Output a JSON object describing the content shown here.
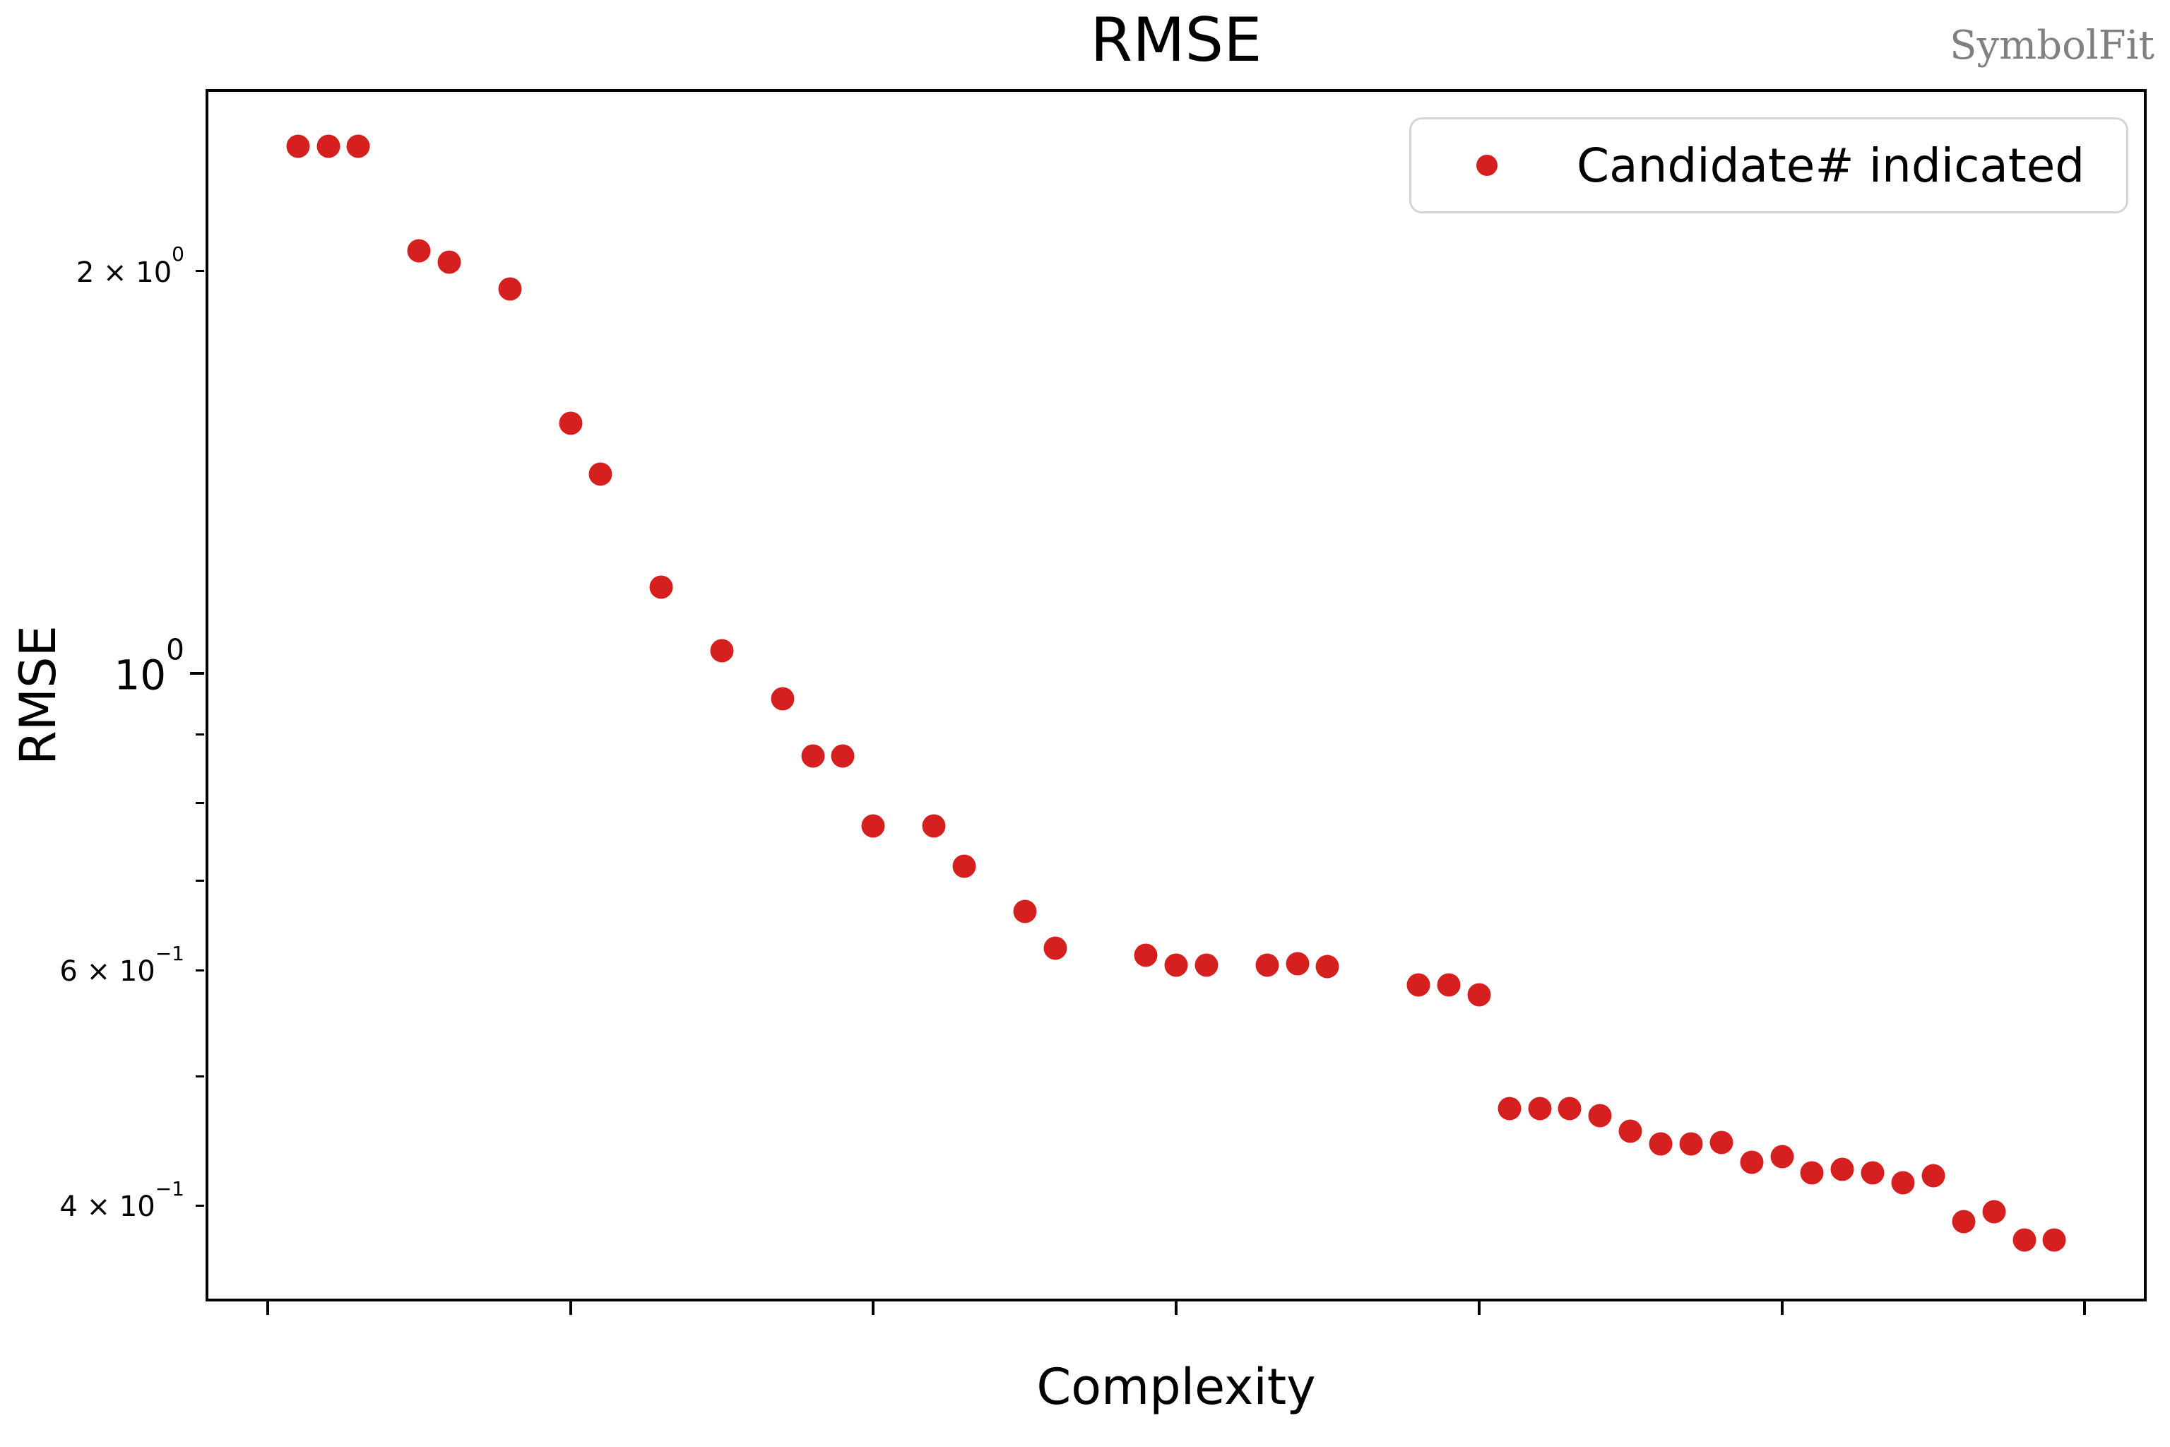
{
  "watermark": "SymbolFit",
  "colors": {
    "point": "#d62020",
    "watermark": "#808080",
    "legend_border": "#d4d4d4",
    "text": "#000000"
  },
  "chart_data": {
    "type": "scatter",
    "title": "RMSE",
    "xlabel": "Complexity",
    "ylabel": "RMSE",
    "xscale": "linear",
    "yscale": "log",
    "grid": false,
    "xlim": [
      -2,
      62
    ],
    "ylim": [
      0.34,
      2.73
    ],
    "legend": {
      "label": "Candidate# indicated",
      "position": "upper right"
    },
    "x_ticks": [
      {
        "value": 0,
        "label": "0"
      },
      {
        "value": 10,
        "label": "10"
      },
      {
        "value": 20,
        "label": "20"
      },
      {
        "value": 30,
        "label": "30"
      },
      {
        "value": 40,
        "label": "40"
      },
      {
        "value": 50,
        "label": "50"
      },
      {
        "value": 60,
        "label": "60"
      }
    ],
    "y_ticks_major": [
      {
        "value": 1,
        "base": "10",
        "exp": "0"
      }
    ],
    "y_ticks_minor_labeled": [
      {
        "value": 2,
        "base": "2 × 10",
        "exp": "0"
      },
      {
        "value": 0.6,
        "base": "6 × 10",
        "exp": "−1"
      },
      {
        "value": 0.4,
        "base": "4 × 10",
        "exp": "−1"
      }
    ],
    "y_ticks_minor": [
      0.9,
      0.8,
      0.7,
      0.5
    ],
    "points": [
      {
        "candidate": 0,
        "complexity": 1,
        "rmse": 2.48
      },
      {
        "candidate": 1,
        "complexity": 2,
        "rmse": 2.48
      },
      {
        "candidate": 2,
        "complexity": 3,
        "rmse": 2.48
      },
      {
        "candidate": 3,
        "complexity": 5,
        "rmse": 2.07
      },
      {
        "candidate": 4,
        "complexity": 6,
        "rmse": 2.03
      },
      {
        "candidate": 5,
        "complexity": 8,
        "rmse": 1.94
      },
      {
        "candidate": 6,
        "complexity": 10,
        "rmse": 1.54
      },
      {
        "candidate": 7,
        "complexity": 11,
        "rmse": 1.41
      },
      {
        "candidate": 8,
        "complexity": 13,
        "rmse": 1.16
      },
      {
        "candidate": 9,
        "complexity": 15,
        "rmse": 1.04
      },
      {
        "candidate": 10,
        "complexity": 17,
        "rmse": 0.958
      },
      {
        "candidate": 11,
        "complexity": 18,
        "rmse": 0.868
      },
      {
        "candidate": 12,
        "complexity": 19,
        "rmse": 0.868
      },
      {
        "candidate": 13,
        "complexity": 20,
        "rmse": 0.769
      },
      {
        "candidate": 14,
        "complexity": 22,
        "rmse": 0.769
      },
      {
        "candidate": 15,
        "complexity": 23,
        "rmse": 0.718
      },
      {
        "candidate": 16,
        "complexity": 25,
        "rmse": 0.664
      },
      {
        "candidate": 17,
        "complexity": 26,
        "rmse": 0.623
      },
      {
        "candidate": 18,
        "complexity": 29,
        "rmse": 0.616
      },
      {
        "candidate": 19,
        "complexity": 30,
        "rmse": 0.605
      },
      {
        "candidate": 20,
        "complexity": 31,
        "rmse": 0.605
      },
      {
        "candidate": 21,
        "complexity": 33,
        "rmse": 0.605
      },
      {
        "candidate": 22,
        "complexity": 34,
        "rmse": 0.607
      },
      {
        "candidate": 23,
        "complexity": 35,
        "rmse": 0.604
      },
      {
        "candidate": 24,
        "complexity": 38,
        "rmse": 0.585
      },
      {
        "candidate": 25,
        "complexity": 39,
        "rmse": 0.585
      },
      {
        "candidate": 26,
        "complexity": 40,
        "rmse": 0.575
      },
      {
        "candidate": 27,
        "complexity": 41,
        "rmse": 0.473
      },
      {
        "candidate": 28,
        "complexity": 42,
        "rmse": 0.473
      },
      {
        "candidate": 29,
        "complexity": 43,
        "rmse": 0.473
      },
      {
        "candidate": 30,
        "complexity": 44,
        "rmse": 0.467
      },
      {
        "candidate": 31,
        "complexity": 45,
        "rmse": 0.455
      },
      {
        "candidate": 32,
        "complexity": 46,
        "rmse": 0.445
      },
      {
        "candidate": 33,
        "complexity": 47,
        "rmse": 0.445
      },
      {
        "candidate": 34,
        "complexity": 48,
        "rmse": 0.446
      },
      {
        "candidate": 35,
        "complexity": 49,
        "rmse": 0.431
      },
      {
        "candidate": 36,
        "complexity": 50,
        "rmse": 0.435
      },
      {
        "candidate": 37,
        "complexity": 51,
        "rmse": 0.423
      },
      {
        "candidate": 38,
        "complexity": 52,
        "rmse": 0.426
      },
      {
        "candidate": 39,
        "complexity": 53,
        "rmse": 0.423
      },
      {
        "candidate": 40,
        "complexity": 54,
        "rmse": 0.416
      },
      {
        "candidate": 41,
        "complexity": 55,
        "rmse": 0.421
      },
      {
        "candidate": 42,
        "complexity": 56,
        "rmse": 0.389
      },
      {
        "candidate": 43,
        "complexity": 57,
        "rmse": 0.396
      },
      {
        "candidate": 44,
        "complexity": 58,
        "rmse": 0.377
      },
      {
        "candidate": 45,
        "complexity": 59,
        "rmse": 0.377
      }
    ]
  }
}
